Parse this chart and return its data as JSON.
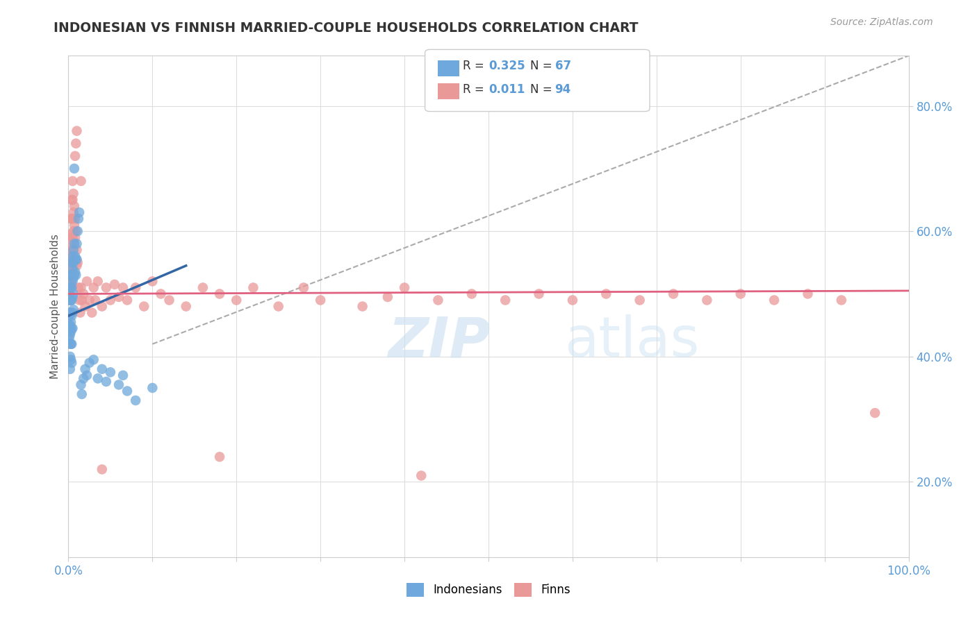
{
  "title": "INDONESIAN VS FINNISH MARRIED-COUPLE HOUSEHOLDS CORRELATION CHART",
  "source": "Source: ZipAtlas.com",
  "ylabel": "Married-couple Households",
  "xlim": [
    0.0,
    1.0
  ],
  "ylim": [
    0.08,
    0.88
  ],
  "xticks": [
    0.0,
    0.1,
    0.2,
    0.3,
    0.4,
    0.5,
    0.6,
    0.7,
    0.8,
    0.9,
    1.0
  ],
  "yticks": [
    0.2,
    0.4,
    0.6,
    0.8
  ],
  "indonesian_color": "#6fa8dc",
  "finnish_color": "#ea9999",
  "indo_line_color": "#3465a4",
  "finn_line_color": "#e06080",
  "dash_line_color": "#aaaaaa",
  "indonesian_r": 0.325,
  "indonesian_n": 67,
  "finnish_r": 0.011,
  "finnish_n": 94,
  "watermark_zip": "ZIP",
  "watermark_atlas": "atlas",
  "background_color": "#ffffff",
  "grid_color": "#dddddd",
  "indonesian_scatter": [
    [
      0.001,
      0.49
    ],
    [
      0.001,
      0.465
    ],
    [
      0.001,
      0.45
    ],
    [
      0.001,
      0.43
    ],
    [
      0.002,
      0.51
    ],
    [
      0.002,
      0.49
    ],
    [
      0.002,
      0.47
    ],
    [
      0.002,
      0.45
    ],
    [
      0.002,
      0.435
    ],
    [
      0.002,
      0.42
    ],
    [
      0.002,
      0.4
    ],
    [
      0.002,
      0.38
    ],
    [
      0.003,
      0.53
    ],
    [
      0.003,
      0.51
    ],
    [
      0.003,
      0.49
    ],
    [
      0.003,
      0.47
    ],
    [
      0.003,
      0.455
    ],
    [
      0.003,
      0.44
    ],
    [
      0.003,
      0.42
    ],
    [
      0.003,
      0.395
    ],
    [
      0.004,
      0.55
    ],
    [
      0.004,
      0.53
    ],
    [
      0.004,
      0.51
    ],
    [
      0.004,
      0.49
    ],
    [
      0.004,
      0.465
    ],
    [
      0.004,
      0.445
    ],
    [
      0.004,
      0.42
    ],
    [
      0.004,
      0.39
    ],
    [
      0.005,
      0.56
    ],
    [
      0.005,
      0.54
    ],
    [
      0.005,
      0.52
    ],
    [
      0.005,
      0.495
    ],
    [
      0.005,
      0.47
    ],
    [
      0.005,
      0.445
    ],
    [
      0.006,
      0.57
    ],
    [
      0.006,
      0.55
    ],
    [
      0.006,
      0.525
    ],
    [
      0.006,
      0.5
    ],
    [
      0.006,
      0.475
    ],
    [
      0.007,
      0.7
    ],
    [
      0.007,
      0.58
    ],
    [
      0.007,
      0.555
    ],
    [
      0.007,
      0.53
    ],
    [
      0.008,
      0.56
    ],
    [
      0.008,
      0.535
    ],
    [
      0.009,
      0.555
    ],
    [
      0.009,
      0.53
    ],
    [
      0.01,
      0.58
    ],
    [
      0.01,
      0.555
    ],
    [
      0.011,
      0.6
    ],
    [
      0.012,
      0.62
    ],
    [
      0.013,
      0.63
    ],
    [
      0.015,
      0.355
    ],
    [
      0.016,
      0.34
    ],
    [
      0.018,
      0.365
    ],
    [
      0.02,
      0.38
    ],
    [
      0.022,
      0.37
    ],
    [
      0.025,
      0.39
    ],
    [
      0.03,
      0.395
    ],
    [
      0.035,
      0.365
    ],
    [
      0.04,
      0.38
    ],
    [
      0.045,
      0.36
    ],
    [
      0.05,
      0.375
    ],
    [
      0.06,
      0.355
    ],
    [
      0.065,
      0.37
    ],
    [
      0.07,
      0.345
    ],
    [
      0.08,
      0.33
    ],
    [
      0.1,
      0.35
    ]
  ],
  "finnish_scatter": [
    [
      0.001,
      0.56
    ],
    [
      0.001,
      0.54
    ],
    [
      0.001,
      0.52
    ],
    [
      0.001,
      0.5
    ],
    [
      0.002,
      0.58
    ],
    [
      0.002,
      0.555
    ],
    [
      0.002,
      0.53
    ],
    [
      0.002,
      0.51
    ],
    [
      0.002,
      0.49
    ],
    [
      0.003,
      0.62
    ],
    [
      0.003,
      0.595
    ],
    [
      0.003,
      0.57
    ],
    [
      0.003,
      0.545
    ],
    [
      0.003,
      0.52
    ],
    [
      0.004,
      0.65
    ],
    [
      0.004,
      0.62
    ],
    [
      0.004,
      0.59
    ],
    [
      0.004,
      0.565
    ],
    [
      0.004,
      0.54
    ],
    [
      0.004,
      0.515
    ],
    [
      0.005,
      0.68
    ],
    [
      0.005,
      0.65
    ],
    [
      0.005,
      0.62
    ],
    [
      0.005,
      0.59
    ],
    [
      0.005,
      0.56
    ],
    [
      0.006,
      0.66
    ],
    [
      0.006,
      0.63
    ],
    [
      0.006,
      0.6
    ],
    [
      0.006,
      0.57
    ],
    [
      0.007,
      0.64
    ],
    [
      0.007,
      0.61
    ],
    [
      0.007,
      0.58
    ],
    [
      0.008,
      0.62
    ],
    [
      0.008,
      0.59
    ],
    [
      0.009,
      0.74
    ],
    [
      0.009,
      0.6
    ],
    [
      0.01,
      0.57
    ],
    [
      0.01,
      0.545
    ],
    [
      0.011,
      0.55
    ],
    [
      0.012,
      0.51
    ],
    [
      0.013,
      0.49
    ],
    [
      0.014,
      0.47
    ],
    [
      0.015,
      0.51
    ],
    [
      0.016,
      0.49
    ],
    [
      0.018,
      0.5
    ],
    [
      0.02,
      0.48
    ],
    [
      0.022,
      0.52
    ],
    [
      0.025,
      0.49
    ],
    [
      0.028,
      0.47
    ],
    [
      0.03,
      0.51
    ],
    [
      0.032,
      0.49
    ],
    [
      0.035,
      0.52
    ],
    [
      0.04,
      0.48
    ],
    [
      0.045,
      0.51
    ],
    [
      0.05,
      0.49
    ],
    [
      0.055,
      0.515
    ],
    [
      0.06,
      0.495
    ],
    [
      0.065,
      0.51
    ],
    [
      0.07,
      0.49
    ],
    [
      0.08,
      0.51
    ],
    [
      0.09,
      0.48
    ],
    [
      0.1,
      0.52
    ],
    [
      0.11,
      0.5
    ],
    [
      0.12,
      0.49
    ],
    [
      0.14,
      0.48
    ],
    [
      0.16,
      0.51
    ],
    [
      0.18,
      0.5
    ],
    [
      0.2,
      0.49
    ],
    [
      0.22,
      0.51
    ],
    [
      0.25,
      0.48
    ],
    [
      0.28,
      0.51
    ],
    [
      0.3,
      0.49
    ],
    [
      0.35,
      0.48
    ],
    [
      0.38,
      0.495
    ],
    [
      0.4,
      0.51
    ],
    [
      0.44,
      0.49
    ],
    [
      0.48,
      0.5
    ],
    [
      0.52,
      0.49
    ],
    [
      0.56,
      0.5
    ],
    [
      0.6,
      0.49
    ],
    [
      0.64,
      0.5
    ],
    [
      0.68,
      0.49
    ],
    [
      0.72,
      0.5
    ],
    [
      0.76,
      0.49
    ],
    [
      0.8,
      0.5
    ],
    [
      0.84,
      0.49
    ],
    [
      0.88,
      0.5
    ],
    [
      0.92,
      0.49
    ],
    [
      0.008,
      0.72
    ],
    [
      0.01,
      0.76
    ],
    [
      0.015,
      0.68
    ],
    [
      0.04,
      0.22
    ],
    [
      0.18,
      0.24
    ],
    [
      0.42,
      0.21
    ],
    [
      0.96,
      0.31
    ]
  ],
  "blue_line": [
    [
      0.0,
      0.465
    ],
    [
      0.14,
      0.545
    ]
  ],
  "pink_line": [
    [
      0.0,
      0.5
    ],
    [
      1.0,
      0.505
    ]
  ],
  "dash_line": [
    [
      0.1,
      0.42
    ],
    [
      1.0,
      0.88
    ]
  ]
}
